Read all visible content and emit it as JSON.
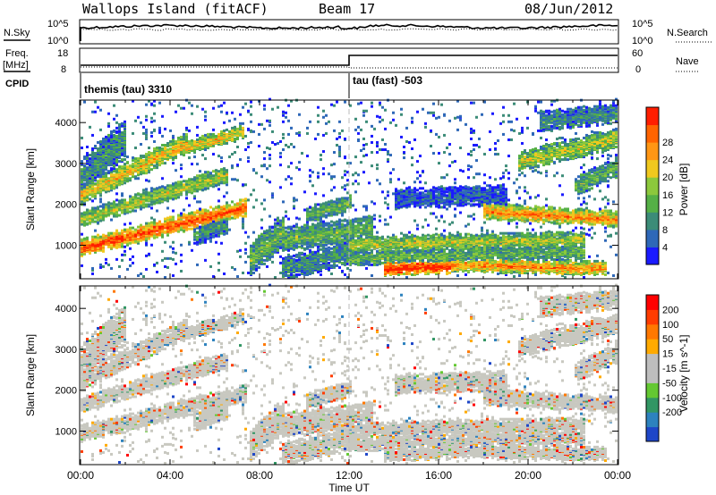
{
  "header": {
    "title": "Wallops Island (fitACF)",
    "beam": "Beam 17",
    "date": "08/Jun/2012"
  },
  "left_labels": {
    "nsky": "N.Sky",
    "freq": "Freq.",
    "mhz": "[MHz]",
    "cpid": "CPID"
  },
  "right_labels": {
    "nsearch": "N.Search",
    "nave": "Nave"
  },
  "tick_labels": {
    "noise_top_left": "10^5",
    "noise_bottom_left": "10^0",
    "noise_top_right": "10^5",
    "noise_bottom_right": "10^0",
    "freq_top": "18",
    "freq_bottom": "8",
    "nave_top": "60",
    "nave_bottom": "0"
  },
  "cpid_segments": [
    {
      "label": "themis (tau) 3310",
      "start_hour": 0
    },
    {
      "label": "tau (fast) -503",
      "start_hour": 12
    }
  ],
  "colors": {
    "trace": "#000000",
    "axis": "#000000",
    "divider": "#bbbbbb"
  },
  "chart_data": [
    {
      "type": "heatmap",
      "panel": "power",
      "xlabel": "",
      "ylabel": "Slant Range [km]",
      "xlim": [
        0,
        24
      ],
      "ylim": [
        180,
        4550
      ],
      "yticks": [
        1000,
        2000,
        3000,
        4000
      ],
      "colorbar": {
        "label": "Power [dB]",
        "ticks": [
          "4",
          "8",
          "12",
          "16",
          "20",
          "24",
          "28"
        ],
        "colors": [
          "#1a1aff",
          "#2e68b8",
          "#3c8c78",
          "#55b046",
          "#8cc83c",
          "#f0c81e",
          "#ff9614",
          "#ff6400",
          "#ff1e00"
        ]
      }
    },
    {
      "type": "heatmap",
      "panel": "velocity",
      "xlabel": "Time UT",
      "ylabel": "Slant Range [km]",
      "xlim": [
        0,
        24
      ],
      "ylim": [
        180,
        4550
      ],
      "yticks": [
        1000,
        2000,
        3000,
        4000
      ],
      "xticks": [
        "00:00",
        "04:00",
        "08:00",
        "12:00",
        "16:00",
        "20:00",
        "00:00"
      ],
      "colorbar": {
        "label": "Velocity [m s^-1]",
        "ticks": [
          "200",
          "100",
          "50",
          "15",
          "-15",
          "-50",
          "-100",
          "-200"
        ],
        "colors": [
          "#1e46c8",
          "#2d82be",
          "#329664",
          "#64c832",
          "#bebebe",
          "#bebebe",
          "#ffaa00",
          "#ff7800",
          "#ff3c00",
          "#ff0000"
        ]
      }
    }
  ]
}
